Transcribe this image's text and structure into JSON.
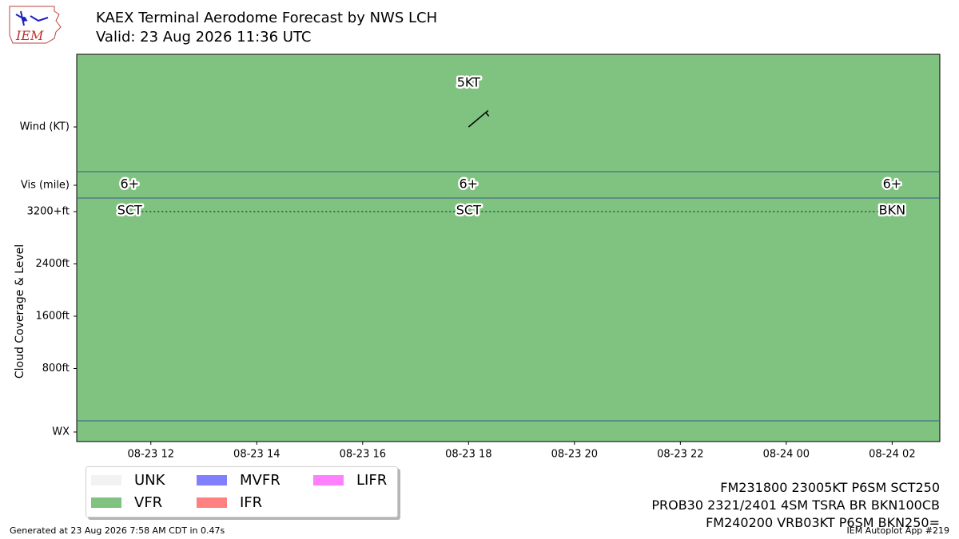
{
  "header": {
    "title": "KAEX Terminal Aerodome Forecast by NWS LCH",
    "valid": "Valid: 23 Aug 2026 11:36 UTC",
    "logo_text": "IEM"
  },
  "chart_data": {
    "type": "time-band",
    "background_category": "VFR",
    "background_color": "#80c280",
    "ylabel": "Cloud Coverage & Level",
    "row_labels": {
      "wind": "Wind (KT)",
      "vis": "Vis (mile)",
      "wx": "WX"
    },
    "cloud_ticks": [
      {
        "label": "3200+ft",
        "value": 3200
      },
      {
        "label": "2400ft",
        "value": 2400
      },
      {
        "label": "1600ft",
        "value": 1600
      },
      {
        "label": "800ft",
        "value": 800
      }
    ],
    "cloud_ylim": [
      0,
      3200
    ],
    "x_range_hours": [
      10.6,
      26.9
    ],
    "x_ticks": [
      {
        "label": "08-23 12",
        "hour": 12
      },
      {
        "label": "08-23 14",
        "hour": 14
      },
      {
        "label": "08-23 16",
        "hour": 16
      },
      {
        "label": "08-23 18",
        "hour": 18
      },
      {
        "label": "08-23 20",
        "hour": 20
      },
      {
        "label": "08-23 22",
        "hour": 22
      },
      {
        "label": "08-24 00",
        "hour": 24
      },
      {
        "label": "08-24 02",
        "hour": 26
      }
    ],
    "forecasts": [
      {
        "hour": 11.6,
        "vis": "6+",
        "cloud": "SCT",
        "cloud_level": 3200
      },
      {
        "hour": 18.0,
        "vis": "6+",
        "cloud": "SCT",
        "cloud_level": 3200,
        "wind_label": "5KT",
        "wind_dir_deg": 230,
        "wind_speed_kt": 5
      },
      {
        "hour": 26.0,
        "vis": "6+",
        "cloud": "BKN",
        "cloud_level": 3200
      }
    ]
  },
  "legend": [
    {
      "label": "UNK",
      "color": "#f2f2f2"
    },
    {
      "label": "VFR",
      "color": "#80c280"
    },
    {
      "label": "MVFR",
      "color": "#8080ff"
    },
    {
      "label": "IFR",
      "color": "#ff8080"
    },
    {
      "label": "LIFR",
      "color": "#ff80ff"
    }
  ],
  "taf_lines": [
    "FM231800 23005KT P6SM SCT250",
    "PROB30 2321/2401 4SM TSRA BR BKN100CB",
    "FM240200 VRB03KT P6SM BKN250="
  ],
  "footer": {
    "generated": "Generated at 23 Aug 2026 7:58 AM CDT in 0.47s",
    "app": "IEM Autoplot App #219"
  }
}
